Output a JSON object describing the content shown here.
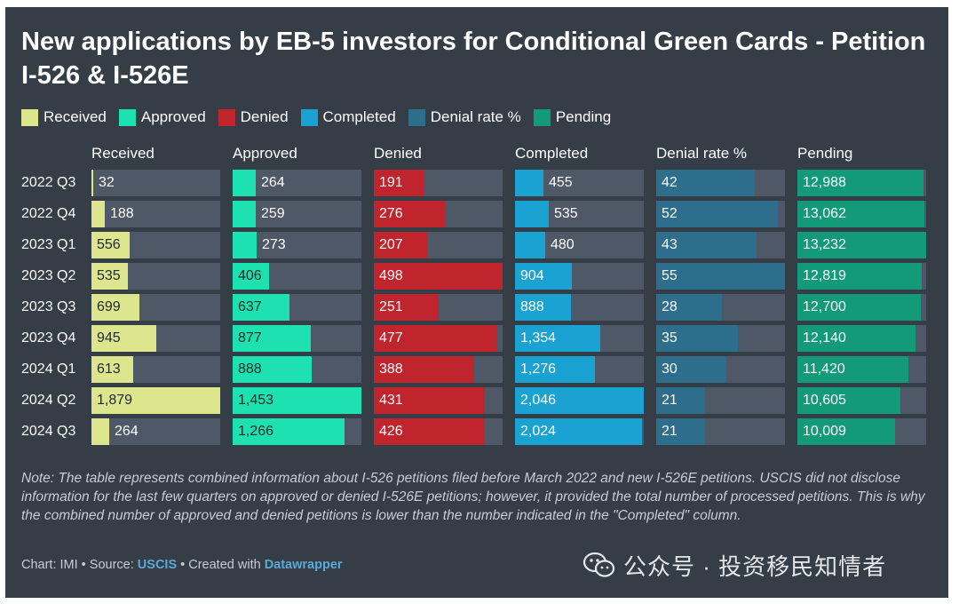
{
  "title": "New applications by EB-5 investors for Conditional Green Cards  - Petition I-526 & I-526E",
  "legend": [
    {
      "label": "Received",
      "color": "#dde58d"
    },
    {
      "label": "Approved",
      "color": "#1de1b0"
    },
    {
      "label": "Denied",
      "color": "#c0242c"
    },
    {
      "label": "Completed",
      "color": "#19a2d2"
    },
    {
      "label": "Denial rate %",
      "color": "#2d6e8c"
    },
    {
      "label": "Pending",
      "color": "#129a79"
    }
  ],
  "chart_data": {
    "type": "table",
    "columns": [
      "Received",
      "Approved",
      "Denied",
      "Completed",
      "Denial rate %",
      "Pending"
    ],
    "rows": [
      "2022 Q3",
      "2022 Q4",
      "2023 Q1",
      "2023 Q2",
      "2023 Q3",
      "2023 Q4",
      "2024 Q1",
      "2024 Q2",
      "2024 Q3"
    ],
    "values": [
      [
        32,
        264,
        191,
        455,
        42,
        12988
      ],
      [
        188,
        259,
        276,
        535,
        52,
        13062
      ],
      [
        556,
        273,
        207,
        480,
        43,
        13232
      ],
      [
        535,
        406,
        498,
        904,
        55,
        12819
      ],
      [
        699,
        637,
        251,
        888,
        28,
        12700
      ],
      [
        945,
        877,
        477,
        1354,
        35,
        12140
      ],
      [
        613,
        888,
        388,
        1276,
        30,
        11420
      ],
      [
        1879,
        1453,
        431,
        2046,
        21,
        10605
      ],
      [
        264,
        1266,
        426,
        2024,
        21,
        10009
      ]
    ],
    "labels": [
      [
        "32",
        "264",
        "191",
        "455",
        "42",
        "12,988"
      ],
      [
        "188",
        "259",
        "276",
        "535",
        "52",
        "13,062"
      ],
      [
        "556",
        "273",
        "207",
        "480",
        "43",
        "13,232"
      ],
      [
        "535",
        "406",
        "498",
        "904",
        "55",
        "12,819"
      ],
      [
        "699",
        "637",
        "251",
        "888",
        "28",
        "12,700"
      ],
      [
        "945",
        "877",
        "477",
        "1,354",
        "35",
        "12,140"
      ],
      [
        "613",
        "888",
        "388",
        "1,276",
        "30",
        "11,420"
      ],
      [
        "1,879",
        "1,453",
        "431",
        "2,046",
        "21",
        "10,605"
      ],
      [
        "264",
        "1,266",
        "426",
        "2,024",
        "21",
        "10,009"
      ]
    ],
    "column_max": [
      1879,
      1453,
      498,
      2046,
      55,
      13232
    ],
    "colors": [
      "#dde58d",
      "#1de1b0",
      "#c0242c",
      "#19a2d2",
      "#2d6e8c",
      "#129a79"
    ],
    "track_color": "#4e5866"
  },
  "note": "Note: The table represents combined information about I-526 petitions filed before March 2022 and new I-526E petitions. USCIS did not disclose information for the last few quarters on approved or denied I-526E petitions; however, it provided the total number of processed petitions. This is why the combined number of approved and denied petitions is lower than the number indicated in the \"Completed\" column.",
  "credits": {
    "prefix": "Chart: IMI • Source: ",
    "source": "USCIS",
    "middle": " • Created with ",
    "tool": "Datawrapper"
  },
  "watermark": "公众号 · 投资移民知情者",
  "watermark_icon": "wechat-icon"
}
